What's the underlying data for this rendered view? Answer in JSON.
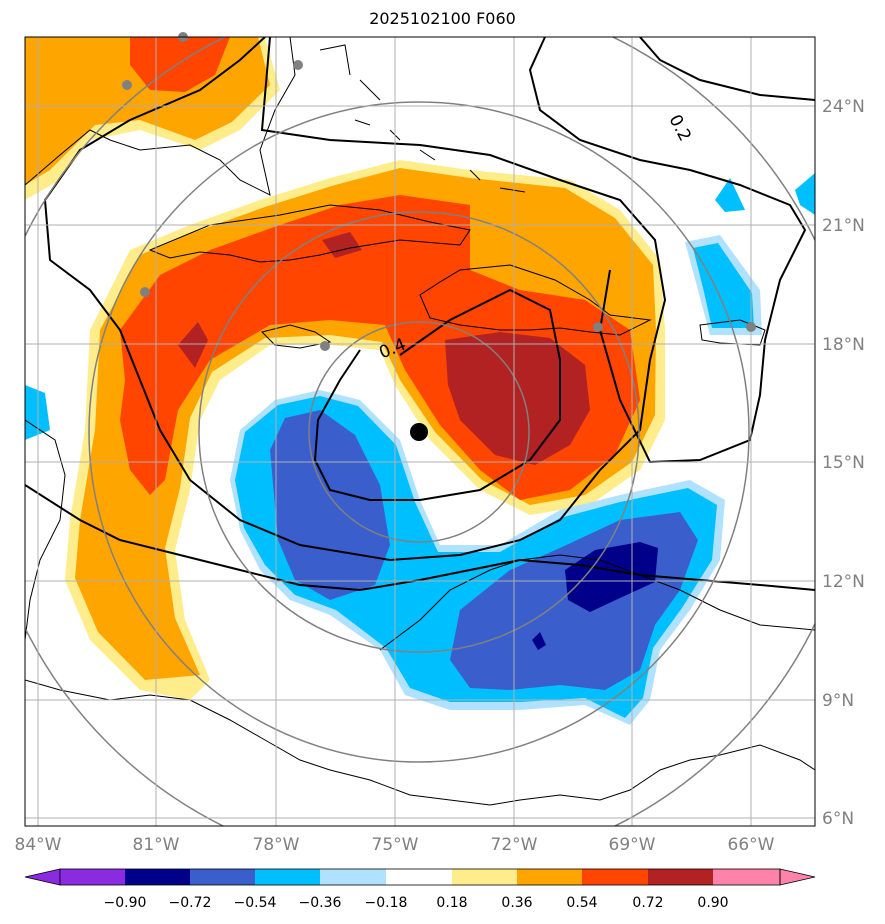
{
  "title": "2025102100 F060",
  "map": {
    "lat_labels": [
      "24°N",
      "21°N",
      "18°N",
      "15°N",
      "12°N",
      "9°N",
      "6°N"
    ],
    "lon_labels": [
      "84°W",
      "81°W",
      "78°W",
      "75°W",
      "72°W",
      "69°W",
      "66°W"
    ],
    "contour_labels": [
      "0.2",
      "0.4"
    ],
    "center_marker": "storm-center",
    "colors": {
      "c_n090": "#8a2be2",
      "c_n072": "#00008b",
      "c_n054": "#3a5fcd",
      "c_n036": "#00bfff",
      "c_n018": "#b0e2ff",
      "c_000": "#ffffff",
      "c_018": "#ffec8b",
      "c_036": "#ffa500",
      "c_054": "#ff4500",
      "c_072": "#b22222",
      "c_090": "#ff82ab"
    }
  },
  "colorbar": {
    "ticks": [
      "−0.90",
      "−0.72",
      "−0.54",
      "−0.36",
      "−0.18",
      "0.18",
      "0.36",
      "0.54",
      "0.72",
      "0.90"
    ]
  }
}
